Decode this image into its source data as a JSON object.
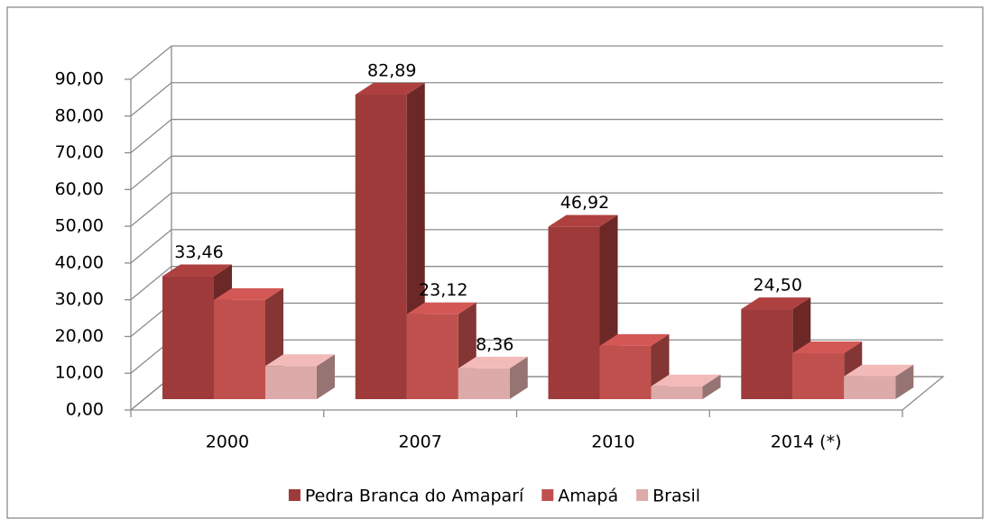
{
  "chart_data": {
    "type": "bar3d",
    "categories": [
      "2000",
      "2007",
      "2010",
      "2014 (*)"
    ],
    "series": [
      {
        "name": "Pedra Branca do Amaparí",
        "color": "#9e3b3a",
        "values": [
          33.46,
          82.89,
          46.92,
          24.5
        ],
        "value_labels": [
          "33,46",
          "82,89",
          "46,92",
          "24,50"
        ]
      },
      {
        "name": "Amapá",
        "color": "#c0504d",
        "values": [
          27,
          23.12,
          14.5,
          12.5
        ],
        "value_labels": [
          null,
          "23,12",
          null,
          null
        ]
      },
      {
        "name": "Brasil",
        "color": "#dcaaa9",
        "values": [
          9,
          8.36,
          3.5,
          6.2
        ],
        "value_labels": [
          null,
          "8,36",
          null,
          null
        ]
      }
    ],
    "ylim": [
      0,
      90
    ],
    "yticks": [
      {
        "value": 0,
        "label": "0,00"
      },
      {
        "value": 10,
        "label": "10,00"
      },
      {
        "value": 20,
        "label": "20,00"
      },
      {
        "value": 30,
        "label": "30,00"
      },
      {
        "value": 40,
        "label": "40,00"
      },
      {
        "value": 50,
        "label": "50,00"
      },
      {
        "value": 60,
        "label": "60,00"
      },
      {
        "value": 70,
        "label": "70,00"
      },
      {
        "value": 80,
        "label": "80,00"
      },
      {
        "value": 90,
        "label": "90,00"
      }
    ],
    "grid": true,
    "legend": "bottom"
  }
}
